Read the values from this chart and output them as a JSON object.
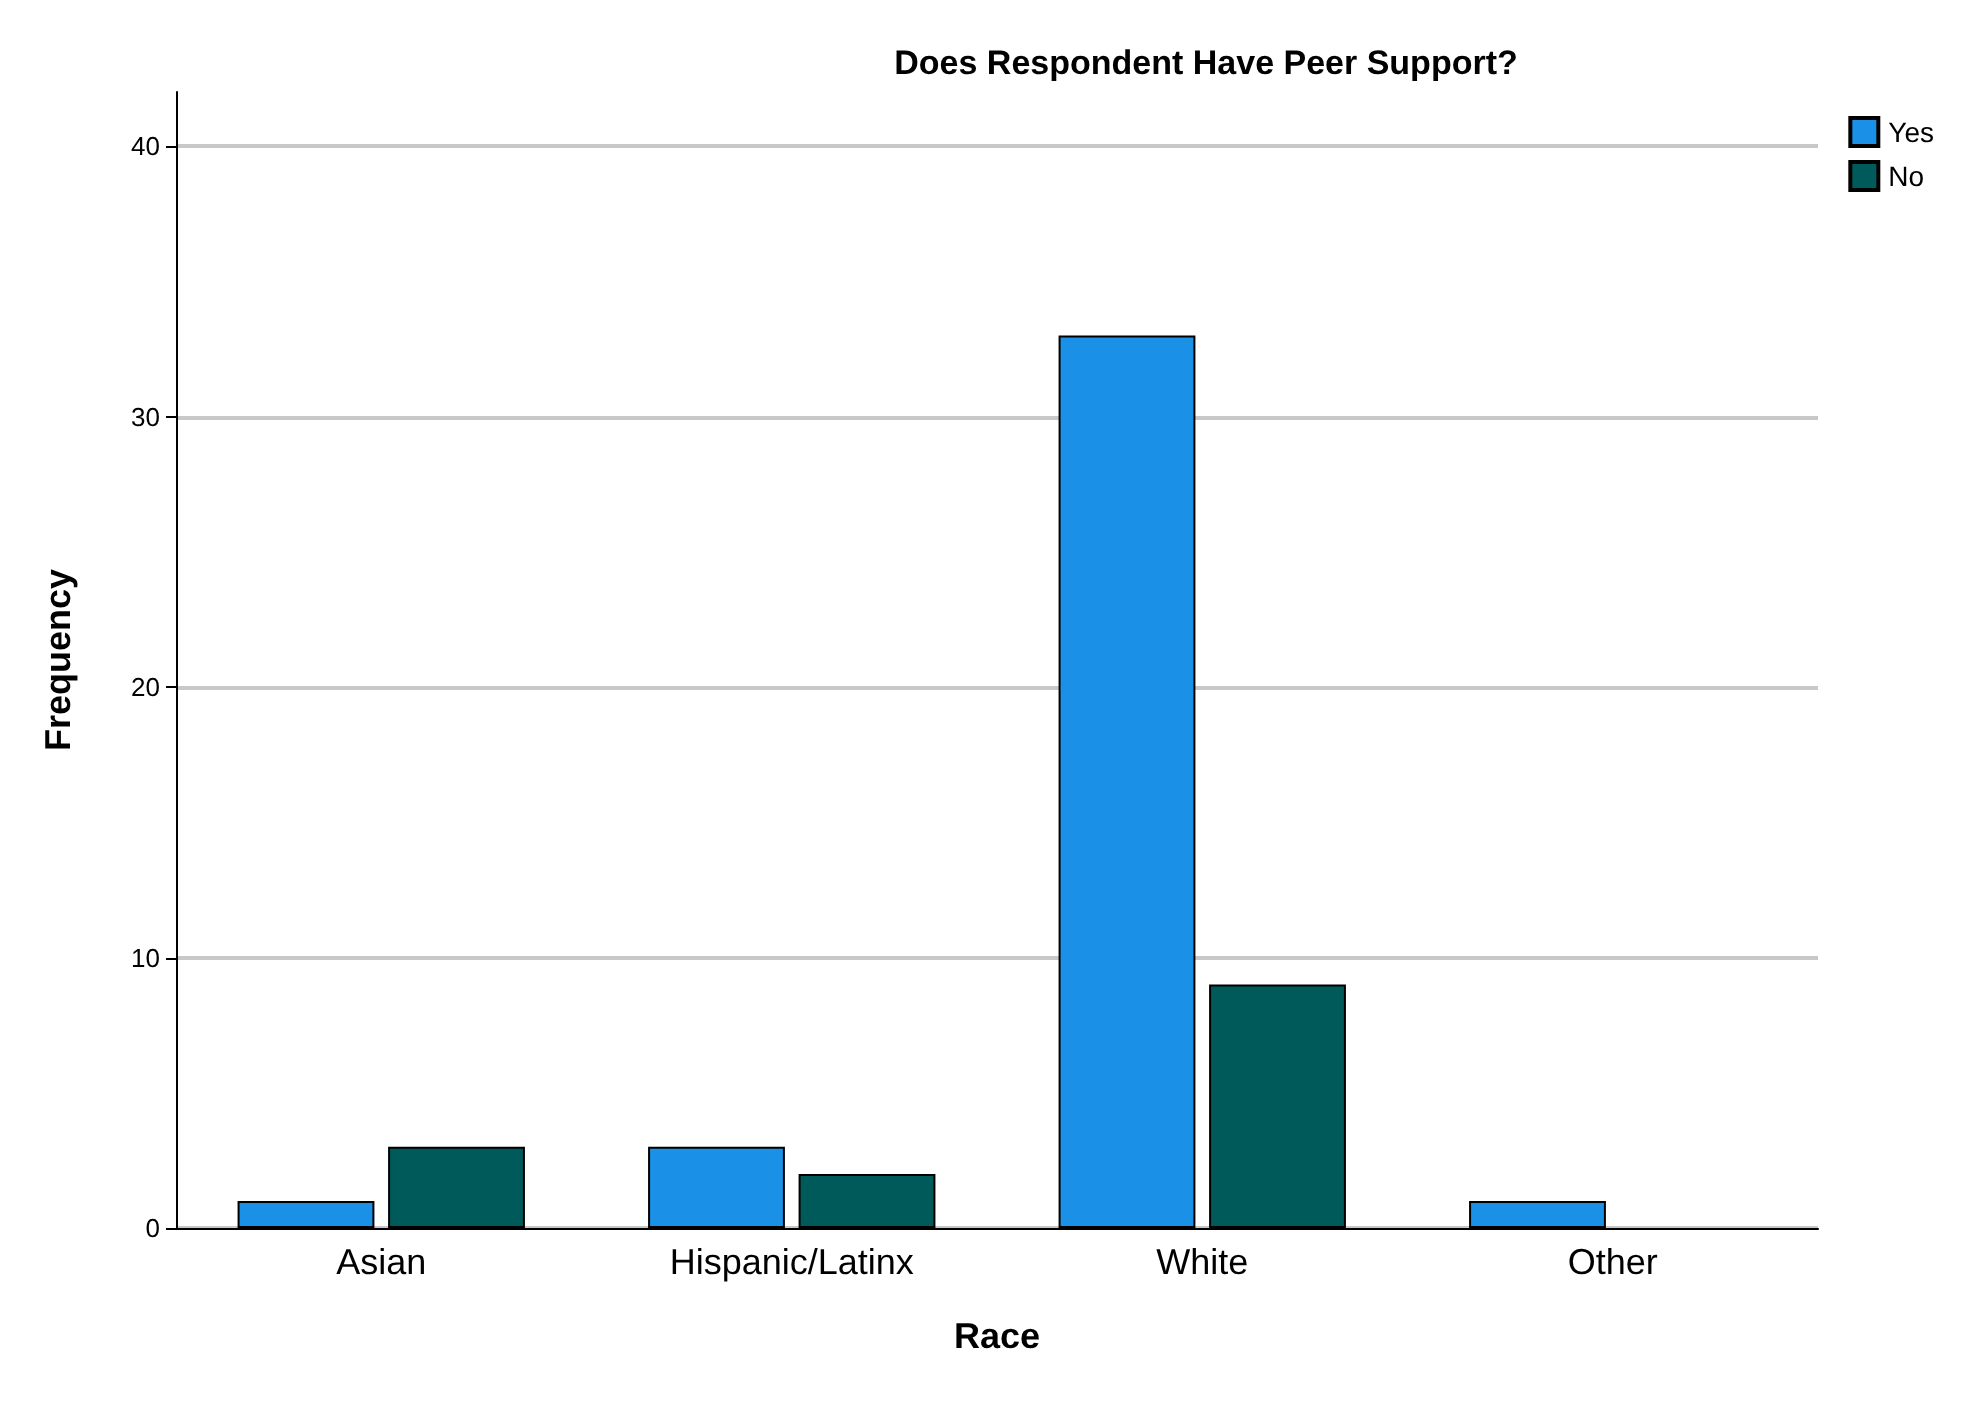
{
  "chart_data": {
    "type": "bar",
    "title": "Does Respondent Have Peer Support?",
    "xlabel": "Race",
    "ylabel": "Frequency",
    "categories": [
      "Asian",
      "Hispanic/Latinx",
      "White",
      "Other"
    ],
    "series": [
      {
        "name": "Yes",
        "color": "#1a90e6",
        "values": [
          1,
          3,
          33,
          1
        ]
      },
      {
        "name": "No",
        "color": "#005a5a",
        "values": [
          3,
          2,
          9,
          0
        ]
      }
    ],
    "ylim": [
      0,
      42
    ],
    "yticks": [
      0,
      10,
      20,
      30,
      40
    ],
    "grid": "y",
    "legend": "top right"
  }
}
